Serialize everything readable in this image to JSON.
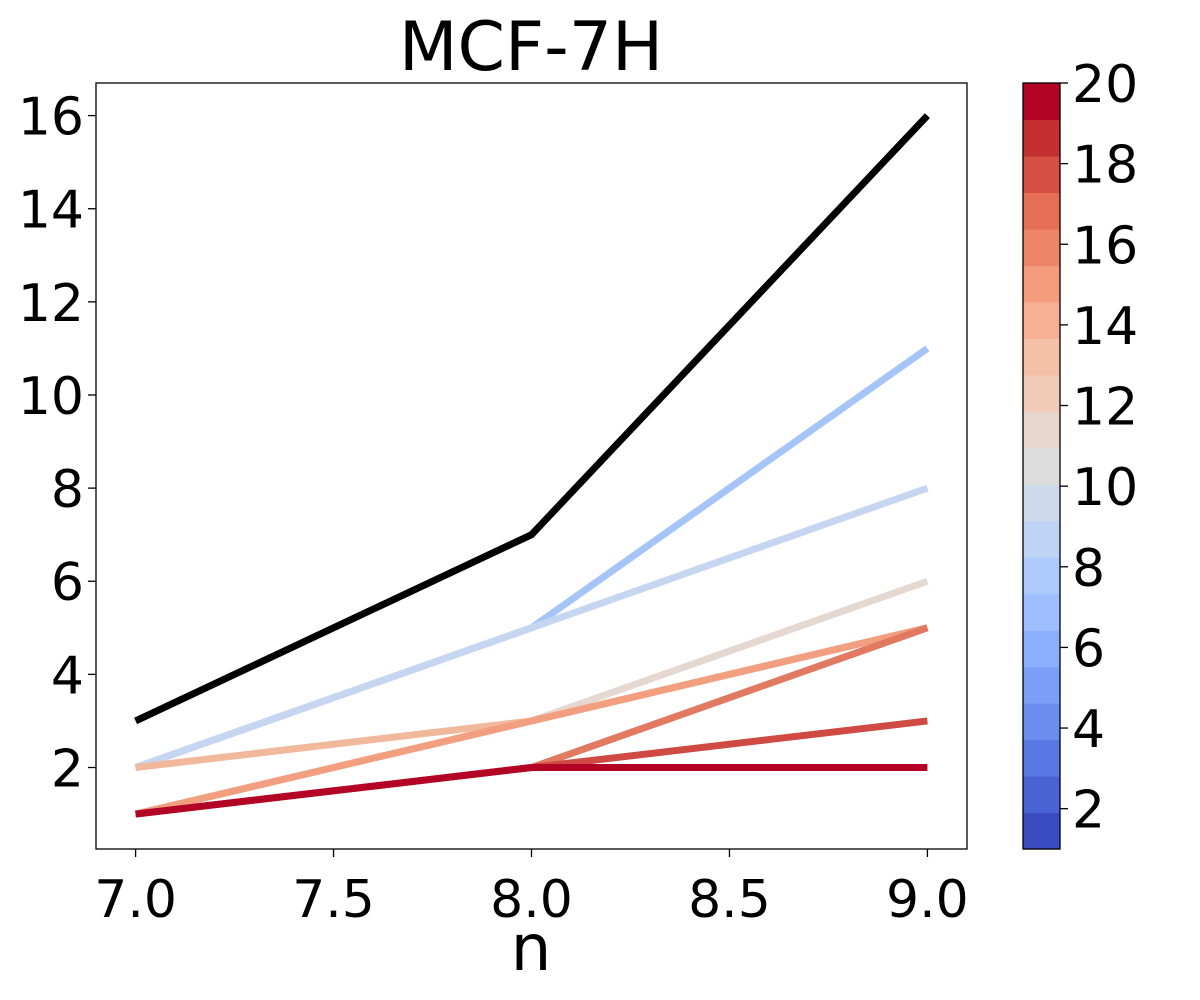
{
  "chart_data": {
    "type": "line",
    "title": "MCF-7H",
    "xlabel": "n",
    "ylabel": "",
    "xlim": [
      6.9,
      9.1
    ],
    "ylim": [
      0.25,
      16.7
    ],
    "x_ticks": [
      "7.0",
      "7.5",
      "8.0",
      "8.5",
      "9.0"
    ],
    "y_ticks": [
      "2",
      "4",
      "6",
      "8",
      "10",
      "12",
      "14",
      "16"
    ],
    "x": [
      7,
      8,
      9
    ],
    "series": [
      {
        "values": [
          3,
          7,
          16
        ],
        "color": "#000000"
      },
      {
        "values": [
          2,
          5,
          11
        ],
        "color": "#a5c4f8"
      },
      {
        "values": [
          2,
          5,
          8
        ],
        "color": "#c6d6f0"
      },
      {
        "values": [
          1,
          3,
          6
        ],
        "color": "#e5d8d1"
      },
      {
        "values": [
          2,
          3,
          5
        ],
        "color": "#f2b89c"
      },
      {
        "values": [
          1,
          3,
          5
        ],
        "color": "#f29f80"
      },
      {
        "values": [
          1,
          2,
          5
        ],
        "color": "#e27a62"
      },
      {
        "values": [
          1,
          2,
          3
        ],
        "color": "#ce4a42"
      },
      {
        "values": [
          1,
          2,
          2
        ],
        "color": "#b40426"
      }
    ],
    "colorbar": {
      "colormap": "coolwarm",
      "range": [
        1,
        20
      ],
      "levels": 20,
      "ticks": [
        "2",
        "4",
        "6",
        "8",
        "10",
        "12",
        "14",
        "16",
        "18",
        "20"
      ],
      "colors": [
        "#3b4cc0",
        "#4a63d3",
        "#5a78e4",
        "#6b8df0",
        "#7b9ff9",
        "#8db0fe",
        "#9ebeff",
        "#aec9fc",
        "#bfd3f6",
        "#cedaeb",
        "#dddcdc",
        "#e8d5cb",
        "#f1cbb8",
        "#f5c0a5",
        "#f7b093",
        "#f59c7d",
        "#ee8468",
        "#e46e56",
        "#d55042",
        "#c43032",
        "#b40426"
      ]
    },
    "grid": false,
    "legend": "none"
  }
}
